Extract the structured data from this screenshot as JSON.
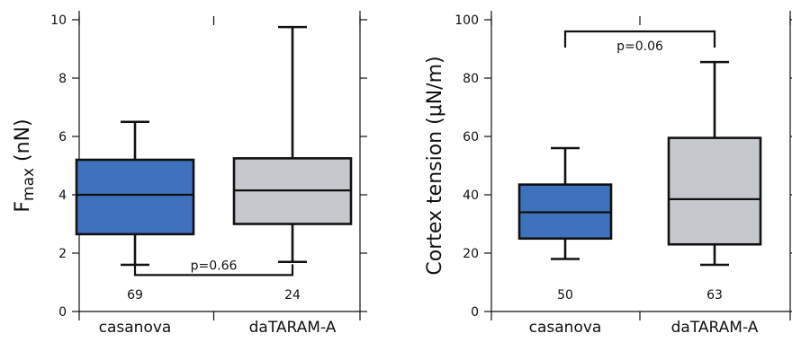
{
  "chart_data": [
    {
      "type": "box",
      "ylabel": "F",
      "ylabel_sub": "max",
      "ylabel_unit": "(nN)",
      "ylim": [
        0,
        10
      ],
      "yticks": [
        0,
        2,
        4,
        6,
        8,
        10
      ],
      "categories": [
        "casanova",
        "daTARAM-A"
      ],
      "boxes": [
        {
          "category": "casanova",
          "min": 1.6,
          "q1": 2.65,
          "median": 4.0,
          "q3": 5.2,
          "max": 6.5,
          "n": "69",
          "color": "#3f72bd"
        },
        {
          "category": "daTARAM-A",
          "min": 1.7,
          "q1": 3.0,
          "median": 4.15,
          "q3": 5.25,
          "max": 9.75,
          "n": "24",
          "color": "#c5c8cd"
        }
      ],
      "significance": {
        "label": "p=0.66",
        "position": "bottom",
        "y": 1.25
      }
    },
    {
      "type": "box",
      "ylabel": "Cortex tension (μN/m)",
      "ylim": [
        0,
        100
      ],
      "yticks": [
        0,
        20,
        40,
        60,
        80,
        100
      ],
      "categories": [
        "casanova",
        "daTARAM-A"
      ],
      "boxes": [
        {
          "category": "casanova",
          "min": 18,
          "q1": 25,
          "median": 34,
          "q3": 43.5,
          "max": 56,
          "n": "50",
          "color": "#3f72bd"
        },
        {
          "category": "daTARAM-A",
          "min": 16,
          "q1": 23,
          "median": 38.5,
          "q3": 59.5,
          "max": 85.5,
          "n": "63",
          "color": "#c5c8cd"
        }
      ],
      "significance": {
        "label": "p=0.06",
        "position": "top",
        "y": 96
      }
    }
  ]
}
